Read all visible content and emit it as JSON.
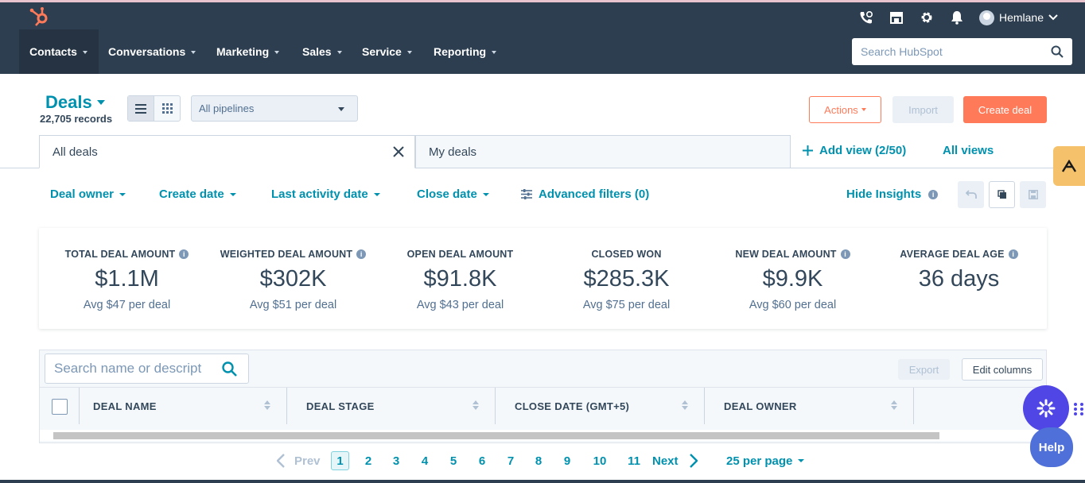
{
  "topbar": {
    "account_name": "Hemlane"
  },
  "nav": {
    "items": [
      {
        "label": "Contacts"
      },
      {
        "label": "Conversations"
      },
      {
        "label": "Marketing"
      },
      {
        "label": "Sales"
      },
      {
        "label": "Service"
      },
      {
        "label": "Reporting"
      }
    ],
    "search_placeholder": "Search HubSpot"
  },
  "header": {
    "title": "Deals",
    "records": "22,705 records",
    "pipeline_select": "All pipelines",
    "actions_label": "Actions",
    "import_label": "Import",
    "create_label": "Create deal"
  },
  "views": {
    "tabs": [
      {
        "label": "All deals"
      },
      {
        "label": "My deals"
      }
    ],
    "add_view": "Add view (2/50)",
    "all_views": "All views"
  },
  "filters": {
    "items": [
      {
        "label": "Deal owner"
      },
      {
        "label": "Create date"
      },
      {
        "label": "Last activity date"
      },
      {
        "label": "Close date"
      }
    ],
    "advanced": "Advanced filters (0)",
    "hide_insights": "Hide Insights"
  },
  "insights": [
    {
      "label": "TOTAL DEAL AMOUNT",
      "value": "$1.1M",
      "avg": "Avg $47 per deal"
    },
    {
      "label": "WEIGHTED DEAL AMOUNT",
      "value": "$302K",
      "avg": "Avg $51 per deal"
    },
    {
      "label": "OPEN DEAL AMOUNT",
      "value": "$91.8K",
      "avg": "Avg $43 per deal"
    },
    {
      "label": "CLOSED WON",
      "value": "$285.3K",
      "avg": "Avg $75 per deal"
    },
    {
      "label": "NEW DEAL AMOUNT",
      "value": "$9.9K",
      "avg": "Avg $60 per deal"
    },
    {
      "label": "AVERAGE DEAL AGE",
      "value": "36 days",
      "avg": ""
    }
  ],
  "table": {
    "search_placeholder": "Search name or descript",
    "export_label": "Export",
    "edit_columns_label": "Edit columns",
    "columns": [
      "DEAL NAME",
      "DEAL STAGE",
      "CLOSE DATE (GMT+5)",
      "DEAL OWNER"
    ]
  },
  "pagination": {
    "prev": "Prev",
    "next": "Next",
    "pages": [
      "1",
      "2",
      "3",
      "4",
      "5",
      "6",
      "7",
      "8",
      "9",
      "10",
      "11"
    ],
    "per_page": "25 per page"
  },
  "help": {
    "label": "Help"
  },
  "colors": {
    "nav_bg": "#2d3e50",
    "accent": "#0091ae",
    "primary_button": "#ff7a59"
  }
}
